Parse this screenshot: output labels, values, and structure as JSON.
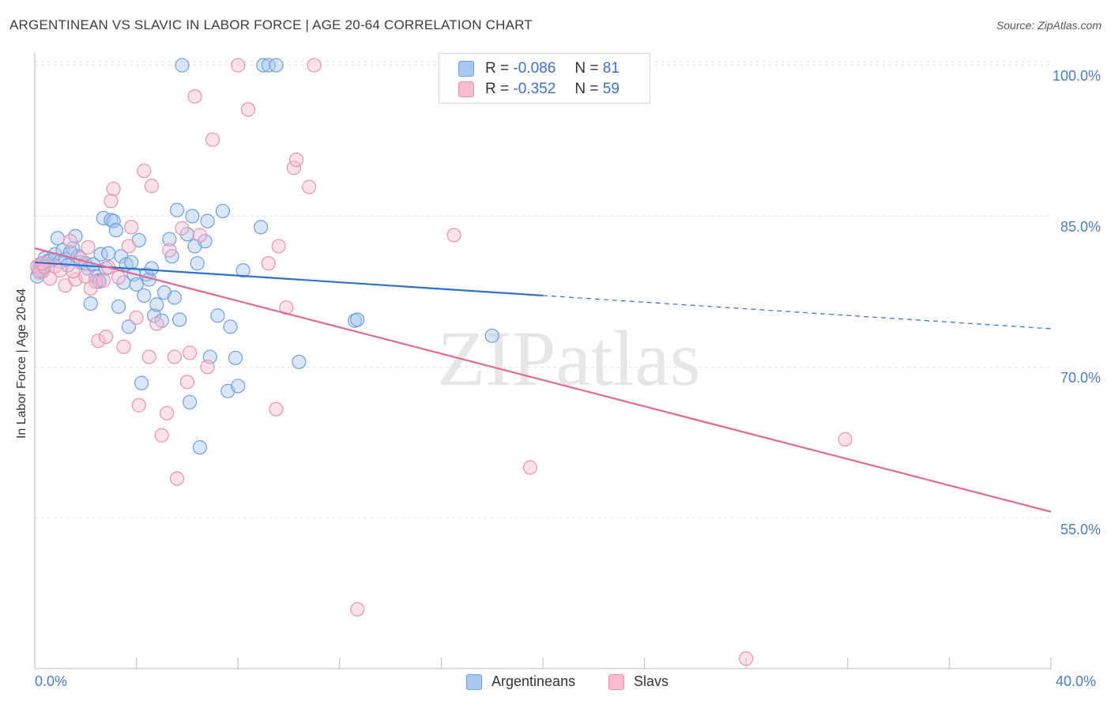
{
  "title": "ARGENTINEAN VS SLAVIC IN LABOR FORCE | AGE 20-64 CORRELATION CHART",
  "source": "Source: ZipAtlas.com",
  "watermark": "ZIPatlas",
  "legend_top": {
    "rows": [
      {
        "r_label": "R =",
        "r_value": "-0.086",
        "n_label": "N =",
        "n_value": "81"
      },
      {
        "r_label": "R =",
        "r_value": "-0.352",
        "n_label": "N =",
        "n_value": "59"
      }
    ]
  },
  "legend_bottom": [
    "Argentineans",
    "Slavs"
  ],
  "y_tick_labels": [
    "100.0%",
    "85.0%",
    "70.0%",
    "55.0%"
  ],
  "x_tick_labels": [
    "0.0%",
    "40.0%"
  ],
  "colors": {
    "argentineans_fill": "#a9c8f0",
    "argentineans_stroke": "#6f9fe0",
    "argentineans_line": "#2f6fcf",
    "slavs_fill": "#f7bcd0",
    "slavs_stroke": "#e992b0",
    "slavs_line": "#e06a94",
    "tick_text": "#4a7cc9",
    "grid": "#dddddd"
  },
  "chart_data": {
    "type": "scatter",
    "title": "ARGENTINEAN VS SLAVIC IN LABOR FORCE | AGE 20-64 CORRELATION CHART",
    "xlabel": "",
    "ylabel": "In Labor Force | Age 20-64",
    "xlim": [
      0,
      40
    ],
    "ylim": [
      40,
      101.3
    ],
    "y_ticks": [
      55,
      70,
      85,
      100
    ],
    "x_ticks": [
      0,
      40
    ],
    "grid": true,
    "legend_position": "top-center",
    "series": [
      {
        "name": "Argentineans",
        "r": -0.086,
        "n": 81,
        "trend": {
          "x_start": 0,
          "y_start": 80.4,
          "x_solid_end": 20,
          "y_solid_end": 77.1,
          "x_end": 40,
          "y_end": 73.8
        },
        "points": [
          [
            0.1,
            79.0
          ],
          [
            0.2,
            80.2
          ],
          [
            0.3,
            79.5
          ],
          [
            0.4,
            80.8
          ],
          [
            0.5,
            80.5
          ],
          [
            0.6,
            80.6
          ],
          [
            0.8,
            81.2
          ],
          [
            0.9,
            82.8
          ],
          [
            1.0,
            80.5
          ],
          [
            1.1,
            81.6
          ],
          [
            1.2,
            80.7
          ],
          [
            1.3,
            80.1
          ],
          [
            1.5,
            81.8
          ],
          [
            1.6,
            83.0
          ],
          [
            1.7,
            81.0
          ],
          [
            1.8,
            80.4
          ],
          [
            2.0,
            80.3
          ],
          [
            2.1,
            79.8
          ],
          [
            2.2,
            76.3
          ],
          [
            2.3,
            80.2
          ],
          [
            2.4,
            79.0
          ],
          [
            2.5,
            78.6
          ],
          [
            2.6,
            81.2
          ],
          [
            2.7,
            84.8
          ],
          [
            2.8,
            79.8
          ],
          [
            2.9,
            81.3
          ],
          [
            3.0,
            84.6
          ],
          [
            3.1,
            84.5
          ],
          [
            3.2,
            83.6
          ],
          [
            3.3,
            76.0
          ],
          [
            3.4,
            81.0
          ],
          [
            3.5,
            78.4
          ],
          [
            3.6,
            80.2
          ],
          [
            3.7,
            74.0
          ],
          [
            3.8,
            80.4
          ],
          [
            3.9,
            79.2
          ],
          [
            4.0,
            78.2
          ],
          [
            4.1,
            82.6
          ],
          [
            4.2,
            68.4
          ],
          [
            4.3,
            77.1
          ],
          [
            4.4,
            79.2
          ],
          [
            4.5,
            78.7
          ],
          [
            4.6,
            79.8
          ],
          [
            4.7,
            75.1
          ],
          [
            4.8,
            76.2
          ],
          [
            5.0,
            74.6
          ],
          [
            5.1,
            77.4
          ],
          [
            5.3,
            82.7
          ],
          [
            5.4,
            81.0
          ],
          [
            5.5,
            76.9
          ],
          [
            5.6,
            85.6
          ],
          [
            5.7,
            74.7
          ],
          [
            5.8,
            100.0
          ],
          [
            6.0,
            83.2
          ],
          [
            6.1,
            66.5
          ],
          [
            6.2,
            85.0
          ],
          [
            6.3,
            82.0
          ],
          [
            6.4,
            80.3
          ],
          [
            6.5,
            62.0
          ],
          [
            6.7,
            82.5
          ],
          [
            6.8,
            84.5
          ],
          [
            6.9,
            71.0
          ],
          [
            7.2,
            75.1
          ],
          [
            7.4,
            85.5
          ],
          [
            7.6,
            67.6
          ],
          [
            7.7,
            74.0
          ],
          [
            7.9,
            70.9
          ],
          [
            8.0,
            68.1
          ],
          [
            8.2,
            79.6
          ],
          [
            8.9,
            83.9
          ],
          [
            9.0,
            100.0
          ],
          [
            9.2,
            100.0
          ],
          [
            9.5,
            100.0
          ],
          [
            10.4,
            70.5
          ],
          [
            12.6,
            74.6
          ],
          [
            12.7,
            74.7
          ],
          [
            18.0,
            73.1
          ],
          [
            0.15,
            79.6
          ],
          [
            0.35,
            80.0
          ],
          [
            1.4,
            81.4
          ],
          [
            2.55,
            78.5
          ]
        ]
      },
      {
        "name": "Slavs",
        "r": -0.352,
        "n": 59,
        "trend": {
          "x_start": 0,
          "y_start": 81.8,
          "x_end": 40,
          "y_end": 55.6
        },
        "points": [
          [
            0.1,
            80.0
          ],
          [
            0.2,
            79.4
          ],
          [
            0.4,
            79.9
          ],
          [
            0.6,
            78.8
          ],
          [
            0.8,
            80.0
          ],
          [
            1.0,
            79.6
          ],
          [
            1.2,
            78.1
          ],
          [
            1.4,
            82.5
          ],
          [
            1.6,
            78.7
          ],
          [
            1.8,
            80.8
          ],
          [
            2.0,
            79.0
          ],
          [
            2.1,
            81.9
          ],
          [
            2.2,
            77.8
          ],
          [
            2.4,
            78.5
          ],
          [
            2.5,
            72.6
          ],
          [
            2.7,
            78.6
          ],
          [
            2.8,
            73.0
          ],
          [
            3.0,
            86.5
          ],
          [
            3.1,
            87.7
          ],
          [
            3.3,
            78.9
          ],
          [
            3.5,
            72.0
          ],
          [
            3.7,
            82.0
          ],
          [
            3.8,
            83.9
          ],
          [
            4.0,
            74.9
          ],
          [
            4.1,
            66.2
          ],
          [
            4.3,
            89.5
          ],
          [
            4.5,
            71.0
          ],
          [
            4.6,
            88.0
          ],
          [
            4.8,
            74.3
          ],
          [
            5.0,
            63.2
          ],
          [
            5.2,
            65.4
          ],
          [
            5.3,
            81.6
          ],
          [
            5.5,
            71.0
          ],
          [
            5.6,
            58.9
          ],
          [
            5.8,
            83.8
          ],
          [
            6.0,
            68.5
          ],
          [
            6.1,
            71.4
          ],
          [
            6.3,
            96.9
          ],
          [
            6.5,
            83.1
          ],
          [
            6.8,
            70.0
          ],
          [
            7.0,
            92.6
          ],
          [
            8.0,
            100.0
          ],
          [
            8.4,
            95.6
          ],
          [
            9.2,
            80.3
          ],
          [
            9.5,
            65.8
          ],
          [
            9.6,
            82.0
          ],
          [
            9.9,
            75.9
          ],
          [
            10.2,
            89.8
          ],
          [
            10.3,
            90.6
          ],
          [
            10.8,
            87.9
          ],
          [
            11.0,
            100.0
          ],
          [
            16.5,
            83.1
          ],
          [
            19.5,
            60.0
          ],
          [
            31.9,
            62.8
          ],
          [
            12.7,
            45.9
          ],
          [
            28.0,
            41.0
          ],
          [
            0.3,
            80.3
          ],
          [
            1.5,
            79.5
          ],
          [
            2.9,
            79.9
          ]
        ]
      }
    ]
  }
}
